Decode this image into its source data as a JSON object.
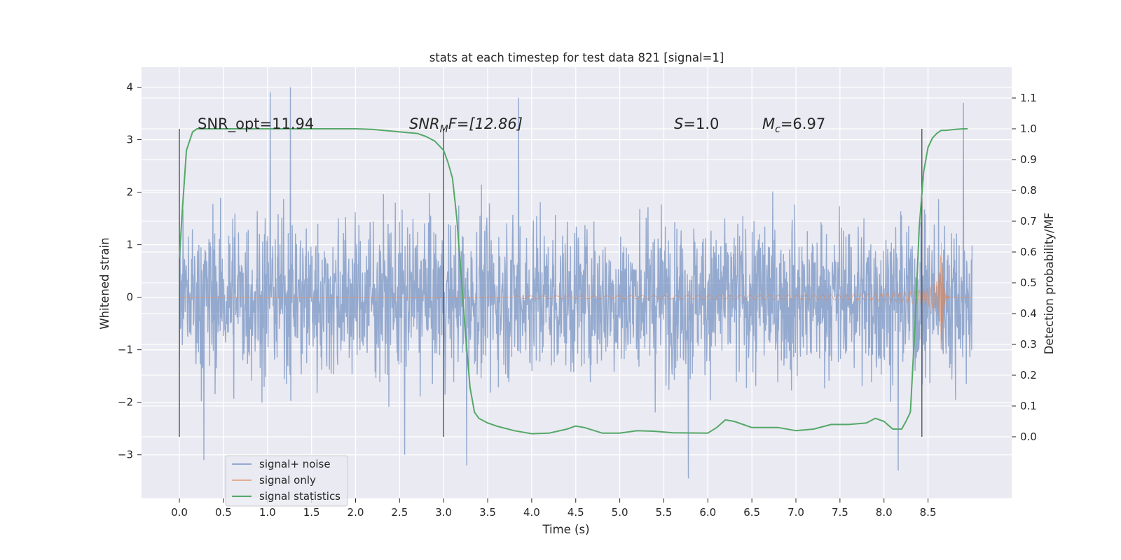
{
  "chart_data": {
    "type": "line",
    "title": "stats at each timestep for test data 821 [signal=1]",
    "xlabel": "Time (s)",
    "ylabel": "Whitened strain",
    "y2label": "Detection probability/MF",
    "xlim": [
      -0.43,
      9.45
    ],
    "ylim": [
      -3.83,
      4.38
    ],
    "y2lim": [
      -0.2,
      1.2
    ],
    "xticks": [
      "0.0",
      "0.5",
      "1.0",
      "1.5",
      "2.0",
      "2.5",
      "3.0",
      "3.5",
      "4.0",
      "4.5",
      "5.0",
      "5.5",
      "6.0",
      "6.5",
      "7.0",
      "7.5",
      "8.0",
      "8.5"
    ],
    "yticks": [
      "−3",
      "−2",
      "−1",
      "0",
      "1",
      "2",
      "3",
      "4"
    ],
    "y2ticks": [
      "0.0",
      "0.1",
      "0.2",
      "0.3",
      "0.4",
      "0.5",
      "0.6",
      "0.7",
      "0.8",
      "0.9",
      "1.0",
      "1.1"
    ],
    "grid": true,
    "legend_position": "lower-left",
    "annotations": {
      "snr_opt": "SNR_opt=11.94",
      "snr_mf_pre": "SNR",
      "snr_mf_sub": "M",
      "snr_mf_post": "F=[12.86]",
      "s_pre": "S",
      "s_post": "=1.0",
      "mc_pre": "M",
      "mc_sub": "c",
      "mc_post": "=6.97"
    },
    "vertical_markers": [
      0.0,
      3.0,
      8.43
    ],
    "series": [
      {
        "name": "signal+ noise",
        "color": "#4c72b0",
        "kind": "noise",
        "x_range": [
          0.0,
          9.0
        ],
        "typical_band": [
          -1.5,
          1.5
        ],
        "extremes": [
          {
            "x": 1.03,
            "y": 3.9
          },
          {
            "x": 1.26,
            "y": 4.0
          },
          {
            "x": 3.85,
            "y": 3.8
          },
          {
            "x": 8.9,
            "y": 3.7
          },
          {
            "x": 5.78,
            "y": -3.45
          },
          {
            "x": 8.16,
            "y": -3.3
          },
          {
            "x": 0.28,
            "y": -3.1
          },
          {
            "x": 3.26,
            "y": -3.2
          },
          {
            "x": 2.56,
            "y": -3.0
          }
        ]
      },
      {
        "name": "signal only",
        "color": "#dd8452",
        "kind": "chirp",
        "x_range": [
          0.0,
          9.0
        ],
        "merger_time": 8.65,
        "peak_amplitude": 1.45
      },
      {
        "name": "signal statistics",
        "color": "#55a868",
        "axis": "right",
        "x": [
          0.0,
          0.03,
          0.08,
          0.15,
          0.2,
          0.3,
          0.5,
          1.0,
          1.5,
          2.0,
          2.2,
          2.5,
          2.7,
          2.8,
          2.9,
          3.0,
          3.05,
          3.1,
          3.15,
          3.2,
          3.25,
          3.3,
          3.35,
          3.4,
          3.5,
          3.6,
          3.8,
          4.0,
          4.2,
          4.4,
          4.5,
          4.6,
          4.8,
          5.0,
          5.2,
          5.4,
          5.6,
          6.0,
          6.1,
          6.2,
          6.3,
          6.5,
          6.8,
          7.0,
          7.2,
          7.4,
          7.6,
          7.8,
          7.9,
          8.0,
          8.1,
          8.2,
          8.25,
          8.3,
          8.35,
          8.4,
          8.45,
          8.5,
          8.55,
          8.6,
          8.65,
          8.7,
          8.8,
          8.9,
          8.95
        ],
        "y": [
          0.58,
          0.72,
          0.93,
          0.99,
          1.0,
          1.0,
          1.0,
          1.0,
          1.0,
          1.0,
          0.998,
          0.99,
          0.985,
          0.975,
          0.96,
          0.93,
          0.89,
          0.84,
          0.71,
          0.52,
          0.33,
          0.16,
          0.08,
          0.06,
          0.045,
          0.035,
          0.02,
          0.01,
          0.012,
          0.025,
          0.035,
          0.03,
          0.012,
          0.012,
          0.02,
          0.018,
          0.013,
          0.012,
          0.03,
          0.055,
          0.05,
          0.03,
          0.03,
          0.02,
          0.025,
          0.04,
          0.04,
          0.045,
          0.06,
          0.05,
          0.025,
          0.025,
          0.05,
          0.08,
          0.35,
          0.68,
          0.86,
          0.94,
          0.97,
          0.985,
          0.995,
          0.995,
          0.998,
          1.0,
          1.0
        ]
      }
    ]
  }
}
